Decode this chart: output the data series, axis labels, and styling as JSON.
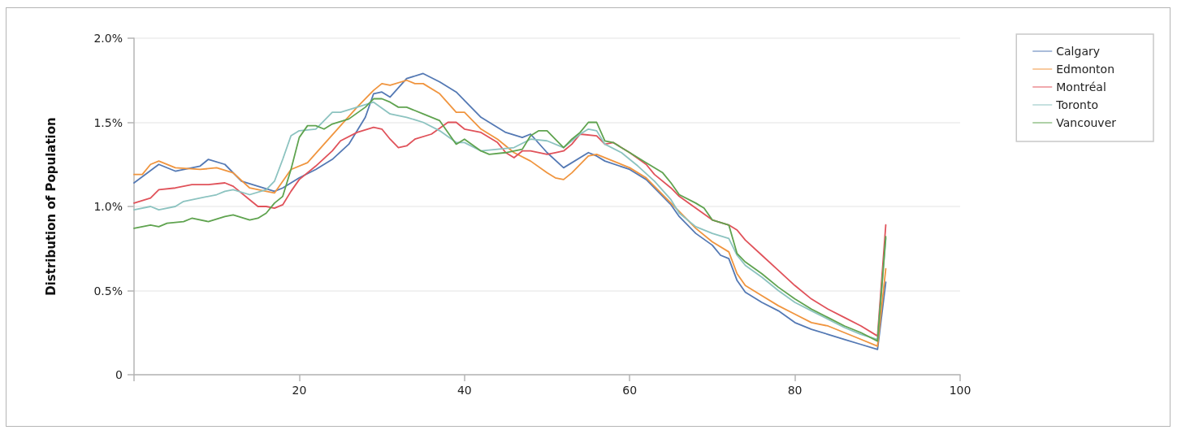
{
  "chart_data": {
    "type": "line",
    "ylabel": "Distribution of Population",
    "xlim": [
      0,
      100
    ],
    "xticks": [
      {
        "value": 0,
        "label": null
      },
      20,
      40,
      60,
      80,
      100
    ],
    "ylim": [
      0,
      2
    ],
    "yticks": [
      {
        "value": 0,
        "label": "0"
      },
      {
        "value": 0.5,
        "label": "0.5%"
      },
      {
        "value": 1,
        "label": "1.0%"
      },
      {
        "value": 1.5,
        "label": "1.5%"
      },
      {
        "value": 2,
        "label": "2.0%"
      }
    ],
    "grid": "y",
    "legend": "top right",
    "marker": "none",
    "line_style": "solid",
    "series": [
      {
        "name": "Calgary",
        "color": "#5479b4",
        "x": [
          0,
          3,
          5,
          8,
          9,
          11,
          13,
          15,
          17,
          18,
          20,
          22,
          24,
          26,
          28,
          29,
          30,
          31,
          33,
          35,
          37,
          39,
          42,
          45,
          47,
          48,
          50,
          52,
          55,
          56,
          57,
          60,
          62,
          65,
          66,
          68,
          70,
          71,
          72,
          73,
          74,
          76,
          78,
          80,
          82,
          84,
          86,
          88,
          90,
          91
        ],
        "values": [
          1.14,
          1.25,
          1.21,
          1.24,
          1.28,
          1.25,
          1.15,
          1.12,
          1.09,
          1.11,
          1.17,
          1.22,
          1.28,
          1.37,
          1.53,
          1.67,
          1.68,
          1.65,
          1.76,
          1.79,
          1.74,
          1.68,
          1.53,
          1.44,
          1.41,
          1.43,
          1.32,
          1.23,
          1.32,
          1.3,
          1.27,
          1.22,
          1.16,
          1.01,
          0.94,
          0.84,
          0.77,
          0.71,
          0.69,
          0.56,
          0.49,
          0.43,
          0.38,
          0.31,
          0.27,
          0.24,
          0.21,
          0.18,
          0.15,
          0.55
        ]
      },
      {
        "name": "Edmonton",
        "color": "#f0953f",
        "x": [
          0,
          1,
          2,
          3,
          5,
          8,
          10,
          12,
          14,
          16,
          17,
          19,
          21,
          23,
          25,
          27,
          29,
          30,
          31,
          33,
          34,
          35,
          37,
          39,
          40,
          42,
          44,
          46,
          48,
          50,
          51,
          52,
          53,
          55,
          56,
          58,
          60,
          62,
          65,
          66,
          68,
          70,
          72,
          73,
          74,
          76,
          78,
          80,
          82,
          84,
          86,
          88,
          90,
          91
        ],
        "values": [
          1.19,
          1.19,
          1.25,
          1.27,
          1.23,
          1.22,
          1.23,
          1.2,
          1.11,
          1.09,
          1.08,
          1.22,
          1.26,
          1.37,
          1.48,
          1.59,
          1.69,
          1.73,
          1.72,
          1.75,
          1.73,
          1.73,
          1.67,
          1.56,
          1.56,
          1.46,
          1.4,
          1.32,
          1.27,
          1.2,
          1.17,
          1.16,
          1.2,
          1.3,
          1.31,
          1.27,
          1.23,
          1.17,
          1.02,
          0.97,
          0.87,
          0.79,
          0.73,
          0.6,
          0.53,
          0.47,
          0.41,
          0.36,
          0.31,
          0.29,
          0.25,
          0.21,
          0.17,
          0.63
        ]
      },
      {
        "name": "Montréal",
        "color": "#e0525a",
        "x": [
          0,
          2,
          3,
          5,
          7,
          9,
          11,
          12,
          14,
          15,
          16,
          17,
          18,
          19,
          20,
          22,
          24,
          25,
          27,
          29,
          30,
          31,
          32,
          33,
          34,
          36,
          38,
          39,
          40,
          42,
          44,
          45,
          46,
          47,
          48,
          50,
          51,
          52,
          53,
          54,
          56,
          57,
          58,
          60,
          62,
          63,
          65,
          66,
          68,
          70,
          72,
          73,
          74,
          76,
          78,
          80,
          82,
          84,
          86,
          88,
          90,
          91
        ],
        "values": [
          1.02,
          1.05,
          1.1,
          1.11,
          1.13,
          1.13,
          1.14,
          1.12,
          1.04,
          1.0,
          1.0,
          0.99,
          1.01,
          1.09,
          1.16,
          1.24,
          1.33,
          1.39,
          1.44,
          1.47,
          1.46,
          1.4,
          1.35,
          1.36,
          1.4,
          1.43,
          1.5,
          1.5,
          1.46,
          1.44,
          1.38,
          1.32,
          1.29,
          1.33,
          1.33,
          1.31,
          1.32,
          1.33,
          1.37,
          1.43,
          1.42,
          1.37,
          1.38,
          1.32,
          1.25,
          1.19,
          1.11,
          1.06,
          0.99,
          0.92,
          0.89,
          0.86,
          0.8,
          0.71,
          0.62,
          0.53,
          0.45,
          0.39,
          0.34,
          0.29,
          0.23,
          0.89
        ]
      },
      {
        "name": "Toronto",
        "color": "#8cc3c0",
        "x": [
          0,
          2,
          3,
          5,
          6,
          8,
          10,
          11,
          12,
          14,
          16,
          17,
          18,
          19,
          20,
          22,
          24,
          25,
          27,
          29,
          31,
          33,
          35,
          37,
          39,
          40,
          42,
          44,
          46,
          48,
          50,
          52,
          54,
          55,
          56,
          57,
          59,
          61,
          63,
          65,
          66,
          68,
          70,
          72,
          73,
          74,
          76,
          78,
          80,
          82,
          84,
          86,
          88,
          90,
          91
        ],
        "values": [
          0.98,
          1.0,
          0.98,
          1.0,
          1.03,
          1.05,
          1.07,
          1.09,
          1.1,
          1.07,
          1.1,
          1.15,
          1.28,
          1.42,
          1.45,
          1.46,
          1.56,
          1.56,
          1.59,
          1.62,
          1.55,
          1.53,
          1.5,
          1.45,
          1.38,
          1.38,
          1.33,
          1.34,
          1.35,
          1.4,
          1.39,
          1.35,
          1.43,
          1.46,
          1.45,
          1.37,
          1.32,
          1.24,
          1.15,
          1.04,
          0.96,
          0.88,
          0.84,
          0.81,
          0.71,
          0.65,
          0.58,
          0.5,
          0.43,
          0.38,
          0.33,
          0.28,
          0.24,
          0.21,
          0.81
        ]
      },
      {
        "name": "Vancouver",
        "color": "#5fa34f",
        "x": [
          0,
          2,
          3,
          4,
          6,
          7,
          9,
          11,
          12,
          14,
          15,
          16,
          17,
          18,
          19,
          20,
          21,
          22,
          23,
          24,
          26,
          28,
          29,
          30,
          31,
          32,
          33,
          35,
          37,
          39,
          40,
          42,
          43,
          45,
          47,
          48,
          49,
          50,
          52,
          53,
          54,
          55,
          56,
          57,
          58,
          60,
          62,
          64,
          65,
          66,
          68,
          69,
          70,
          72,
          73,
          74,
          76,
          78,
          80,
          82,
          84,
          86,
          88,
          90,
          91
        ],
        "values": [
          0.87,
          0.89,
          0.88,
          0.9,
          0.91,
          0.93,
          0.91,
          0.94,
          0.95,
          0.92,
          0.93,
          0.96,
          1.02,
          1.06,
          1.22,
          1.41,
          1.48,
          1.48,
          1.46,
          1.49,
          1.52,
          1.59,
          1.64,
          1.64,
          1.62,
          1.59,
          1.59,
          1.55,
          1.51,
          1.37,
          1.4,
          1.33,
          1.31,
          1.32,
          1.34,
          1.42,
          1.45,
          1.45,
          1.35,
          1.4,
          1.44,
          1.5,
          1.5,
          1.39,
          1.38,
          1.32,
          1.26,
          1.2,
          1.14,
          1.07,
          1.02,
          0.99,
          0.92,
          0.89,
          0.72,
          0.67,
          0.6,
          0.52,
          0.45,
          0.39,
          0.34,
          0.29,
          0.25,
          0.2,
          0.82
        ]
      }
    ]
  }
}
